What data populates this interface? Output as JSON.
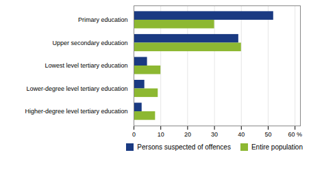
{
  "chart_data": {
    "type": "bar",
    "orientation": "horizontal",
    "categories": [
      "Primary education",
      "Upper secondary education",
      "Lowest level tertiary education",
      "Lower-degree level tertiary education",
      "Higher-degree level tertiary education"
    ],
    "series": [
      {
        "name": "Persons suspected of offences",
        "color": "#1a3a82",
        "values": [
          52,
          39,
          5,
          4,
          3
        ]
      },
      {
        "name": "Entire population",
        "color": "#8db832",
        "values": [
          30,
          40,
          10,
          9,
          8
        ]
      }
    ],
    "xlim": [
      0,
      62
    ],
    "xticks": [
      0,
      10,
      20,
      30,
      40,
      50,
      {
        "value": 60,
        "label": "60 %"
      }
    ],
    "grid": true,
    "legend": "lower right"
  }
}
